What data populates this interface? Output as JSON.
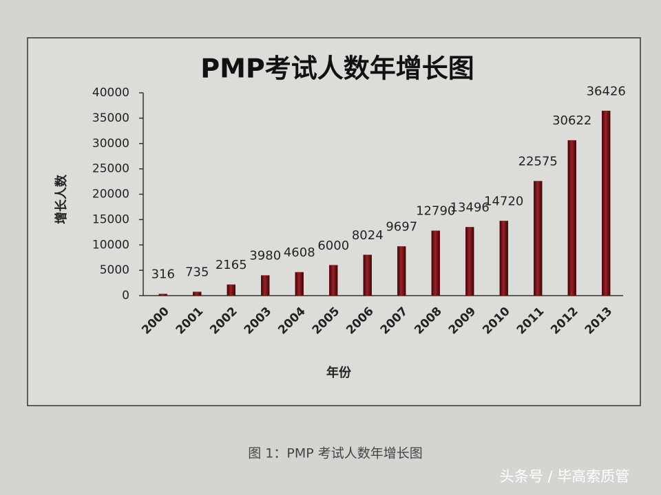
{
  "chart_data": {
    "type": "bar",
    "title": "PMP考试人数年增长图",
    "x_label": "年份",
    "y_label": "增长人数",
    "categories": [
      "2000",
      "2001",
      "2002",
      "2003",
      "2004",
      "2005",
      "2006",
      "2007",
      "2008",
      "2009",
      "2010",
      "2011",
      "2012",
      "2013"
    ],
    "values": [
      316,
      735,
      2165,
      3980,
      4608,
      6000,
      8024,
      9697,
      12790,
      13496,
      14720,
      22575,
      30622,
      36426
    ],
    "color": "#7a1216",
    "ylim": [
      0,
      40000
    ],
    "yticks": [
      0,
      5000,
      10000,
      15000,
      20000,
      25000,
      30000,
      35000,
      40000
    ],
    "grid": false
  },
  "caption": "图 1：PMP 考试人数年增长图",
  "watermark": "头条号 / 毕高索质管"
}
